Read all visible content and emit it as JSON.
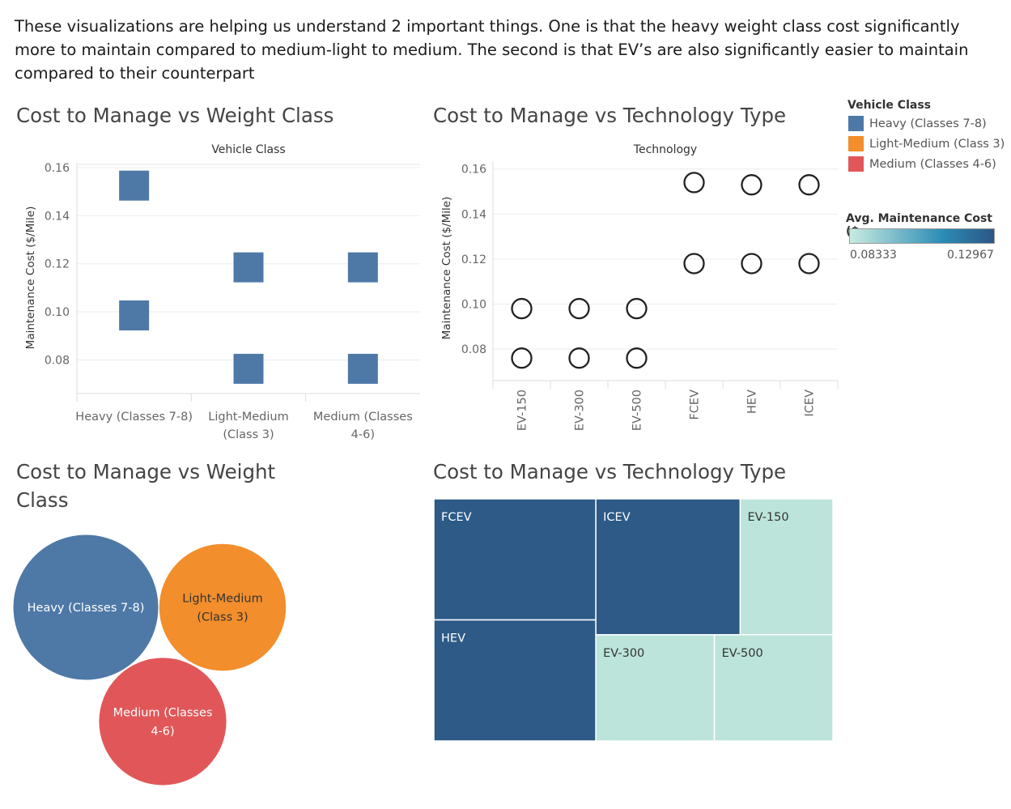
{
  "intro_text": "These visualizations are helping us understand 2 important things. One is that the  heavy weight class cost significantly more to maintain compared to medium-light to medium. The second is that EV’s are also significantly easier to maintain compared to their counterpart",
  "legend": {
    "title": "Vehicle Class",
    "items": [
      {
        "label": "Heavy (Classes 7-8)",
        "color": "#4e79a7"
      },
      {
        "label": "Light-Medium (Class 3)",
        "color": "#f28e2b"
      },
      {
        "label": "Medium (Classes 4-6)",
        "color": "#e15759"
      }
    ],
    "gradient_title": "Avg. Maintenance Cost ($..",
    "gradient_min": "0.08333",
    "gradient_max": "0.12967",
    "gradient_from": "#c8ebe1",
    "gradient_mid": "#2a8bb5",
    "gradient_to": "#2c5684"
  },
  "chart_data": [
    {
      "id": "weight",
      "type": "scatter",
      "title": "Cost to Manage vs Weight Class",
      "header": "Vehicle Class",
      "ylabel": "Maintenance Cost ($/Mile)",
      "ylim": [
        0.066,
        0.162
      ],
      "yticks": [
        "0.08",
        "0.10",
        "0.12",
        "0.14",
        "0.16"
      ],
      "categories": [
        {
          "lines": [
            "Heavy (Classes 7-8)"
          ]
        },
        {
          "lines": [
            "Light-Medium",
            "(Class 3)"
          ]
        },
        {
          "lines": [
            "Medium (Classes",
            "4-6)"
          ]
        }
      ],
      "points": [
        {
          "category": 0,
          "value": 0.1525
        },
        {
          "category": 0,
          "value": 0.0985
        },
        {
          "category": 1,
          "value": 0.1185
        },
        {
          "category": 1,
          "value": 0.0763
        },
        {
          "category": 2,
          "value": 0.1185
        },
        {
          "category": 2,
          "value": 0.0763
        }
      ],
      "mark_color": "#4e79a7"
    },
    {
      "id": "tech",
      "type": "scatter",
      "title": "Cost to Manage vs Technology Type",
      "header": "Technology",
      "ylabel": "Maintenance Cost ($/Mile)",
      "ylim": [
        0.066,
        0.1635
      ],
      "yticks": [
        "0.08",
        "0.10",
        "0.12",
        "0.14",
        "0.16"
      ],
      "categories": [
        "EV-150",
        "EV-300",
        "EV-500",
        "FCEV",
        "HEV",
        "ICEV"
      ],
      "points": [
        {
          "category": 0,
          "value": 0.098
        },
        {
          "category": 0,
          "value": 0.076
        },
        {
          "category": 1,
          "value": 0.098
        },
        {
          "category": 1,
          "value": 0.076
        },
        {
          "category": 2,
          "value": 0.098
        },
        {
          "category": 2,
          "value": 0.076
        },
        {
          "category": 3,
          "value": 0.154
        },
        {
          "category": 3,
          "value": 0.118
        },
        {
          "category": 4,
          "value": 0.153
        },
        {
          "category": 4,
          "value": 0.118
        },
        {
          "category": 5,
          "value": 0.153
        },
        {
          "category": 5,
          "value": 0.118
        }
      ]
    },
    {
      "id": "bubbles",
      "type": "bubble",
      "title": "Cost to Manage vs Weight Class",
      "bubbles": [
        {
          "label": "Heavy (Classes 7-8)",
          "lines": [
            "Heavy (Classes 7-8)"
          ],
          "value": 1.0,
          "color": "#4e79a7",
          "text_color": "#ffffff"
        },
        {
          "label": "Light-Medium (Class 3)",
          "lines": [
            "Light-Medium",
            "(Class 3)"
          ],
          "value": 0.765,
          "color": "#f28e2b",
          "text_color": "#333333"
        },
        {
          "label": "Medium (Classes 4-6)",
          "lines": [
            "Medium (Classes",
            "4-6)"
          ],
          "value": 0.772,
          "color": "#e15759",
          "text_color": "#ffffff"
        }
      ]
    },
    {
      "id": "treemap",
      "type": "treemap",
      "title": "Cost to Manage vs Technology Type",
      "items": [
        {
          "label": "FCEV",
          "value": 0.1297,
          "dark": true
        },
        {
          "label": "HEV",
          "value": 0.1297,
          "dark": true
        },
        {
          "label": "ICEV",
          "value": 0.1297,
          "dark": true
        },
        {
          "label": "EV-150",
          "value": 0.0833,
          "dark": false
        },
        {
          "label": "EV-300",
          "value": 0.0833,
          "dark": false
        },
        {
          "label": "EV-500",
          "value": 0.0833,
          "dark": false
        }
      ]
    }
  ]
}
